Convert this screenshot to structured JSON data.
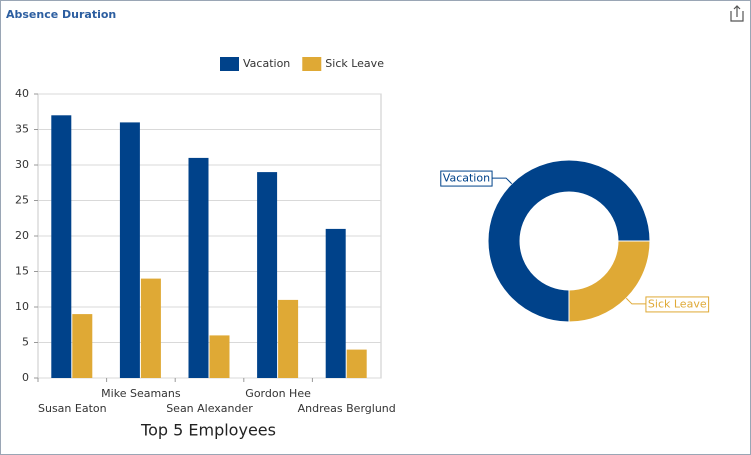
{
  "title": "Absence Duration",
  "chart_data": [
    {
      "type": "bar",
      "x_label": "Top 5 Employees",
      "categories": [
        "Susan Eaton",
        "Mike Seamans",
        "Sean Alexander",
        "Gordon Hee",
        "Andreas Berglund"
      ],
      "series": [
        {
          "name": "Vacation",
          "color": "#00428a",
          "values": [
            37,
            36,
            31,
            29,
            21
          ]
        },
        {
          "name": "Sick Leave",
          "color": "#dfa935",
          "values": [
            9,
            14,
            6,
            11,
            4
          ]
        }
      ],
      "ylim": [
        0,
        40
      ],
      "yticks": [
        0,
        5,
        10,
        15,
        20,
        25,
        30,
        35,
        40
      ],
      "grid": true,
      "legend": "top"
    },
    {
      "type": "donut",
      "categories": [
        "Vacation",
        "Sick Leave"
      ],
      "values": [
        75,
        25
      ],
      "colors": [
        "#00428a",
        "#dfa935"
      ]
    }
  ]
}
